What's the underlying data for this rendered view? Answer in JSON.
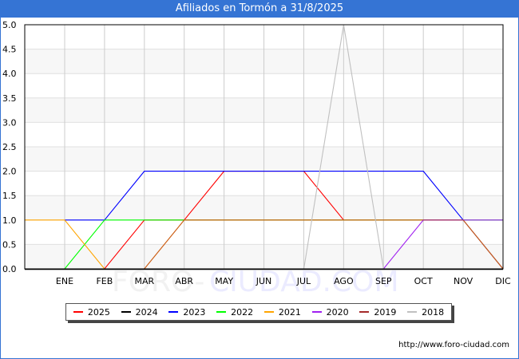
{
  "header": {
    "title": "Afiliados en Tormón a 31/8/2025"
  },
  "footer": {
    "url": "http://www.foro-ciudad.com"
  },
  "watermark": {
    "part1": "FORO-",
    "part2": "CIUDAD.COM"
  },
  "legend": [
    {
      "label": "2025",
      "color": "#ff0000"
    },
    {
      "label": "2024",
      "color": "#000000"
    },
    {
      "label": "2023",
      "color": "#0000ff"
    },
    {
      "label": "2022",
      "color": "#00ff00"
    },
    {
      "label": "2021",
      "color": "#ffa500"
    },
    {
      "label": "2020",
      "color": "#a020f0"
    },
    {
      "label": "2019",
      "color": "#a52a2a"
    },
    {
      "label": "2018",
      "color": "#c0c0c0"
    }
  ],
  "chart_data": {
    "type": "line",
    "title": "Afiliados en Tormón a 31/8/2025",
    "xlabel": "",
    "ylabel": "",
    "categories": [
      "",
      "ENE",
      "FEB",
      "MAR",
      "ABR",
      "MAY",
      "JUN",
      "JUL",
      "AGO",
      "SEP",
      "OCT",
      "NOV",
      "DIC"
    ],
    "ylim": [
      0,
      5
    ],
    "yticks": [
      "0.0",
      "0.5",
      "1.0",
      "1.5",
      "2.0",
      "2.5",
      "3.0",
      "3.5",
      "4.0",
      "4.5",
      "5.0"
    ],
    "grid": true,
    "legend_position": "bottom",
    "series": [
      {
        "name": "2025",
        "color": "#ff0000",
        "values": [
          null,
          0,
          0,
          1,
          1,
          2,
          2,
          2,
          1,
          null,
          null,
          null,
          null
        ]
      },
      {
        "name": "2024",
        "color": "#000000",
        "values": [
          0,
          0,
          0,
          0,
          0,
          0,
          0,
          0,
          0,
          0,
          0,
          0,
          0
        ]
      },
      {
        "name": "2023",
        "color": "#0000ff",
        "values": [
          null,
          1,
          1,
          2,
          2,
          2,
          2,
          2,
          2,
          2,
          2,
          1,
          0
        ]
      },
      {
        "name": "2022",
        "color": "#00ff00",
        "values": [
          null,
          0,
          1,
          1,
          1,
          1,
          1,
          1,
          1,
          1,
          1,
          1,
          1
        ]
      },
      {
        "name": "2021",
        "color": "#ffa500",
        "values": [
          1,
          1,
          0,
          0,
          1,
          1,
          1,
          1,
          1,
          1,
          1,
          1,
          0
        ]
      },
      {
        "name": "2020",
        "color": "#a020f0",
        "values": [
          0,
          0,
          0,
          0,
          0,
          0,
          0,
          0,
          0,
          0,
          1,
          1,
          1
        ]
      },
      {
        "name": "2019",
        "color": "#a52a2a",
        "values": [
          0,
          0,
          0,
          0,
          1,
          1,
          1,
          1,
          1,
          1,
          1,
          1,
          0
        ]
      },
      {
        "name": "2018",
        "color": "#c0c0c0",
        "values": [
          0,
          0,
          0,
          0,
          0,
          0,
          0,
          0,
          5,
          0,
          0,
          0,
          0
        ]
      }
    ]
  }
}
